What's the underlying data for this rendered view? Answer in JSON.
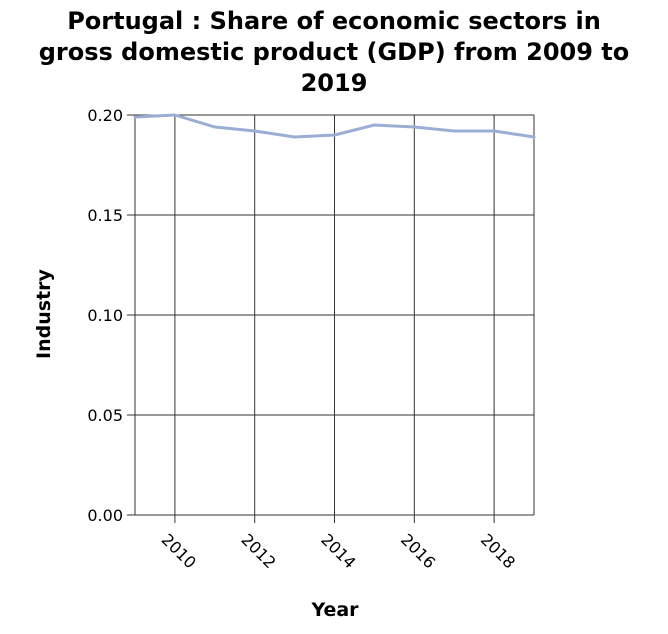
{
  "chart_data": {
    "type": "line",
    "title_lines": [
      "Portugal : Share of economic sectors in",
      "gross domestic product (GDP) from 2009 to",
      "2019"
    ],
    "xlabel": "Year",
    "ylabel": "Industry",
    "xlim": [
      2009,
      2019
    ],
    "ylim": [
      0,
      0.2
    ],
    "x_ticks": [
      2010,
      2012,
      2014,
      2016,
      2018
    ],
    "y_ticks": [
      "0.00",
      "0.05",
      "0.10",
      "0.15",
      "0.20"
    ],
    "grid": true,
    "series": [
      {
        "x": [
          2009,
          2010,
          2011,
          2012,
          2013,
          2014,
          2015,
          2016,
          2017,
          2018,
          2019
        ],
        "values": [
          0.199,
          0.2,
          0.194,
          0.192,
          0.189,
          0.19,
          0.195,
          0.194,
          0.192,
          0.192,
          0.189
        ],
        "color": "#9aaed4"
      }
    ]
  }
}
